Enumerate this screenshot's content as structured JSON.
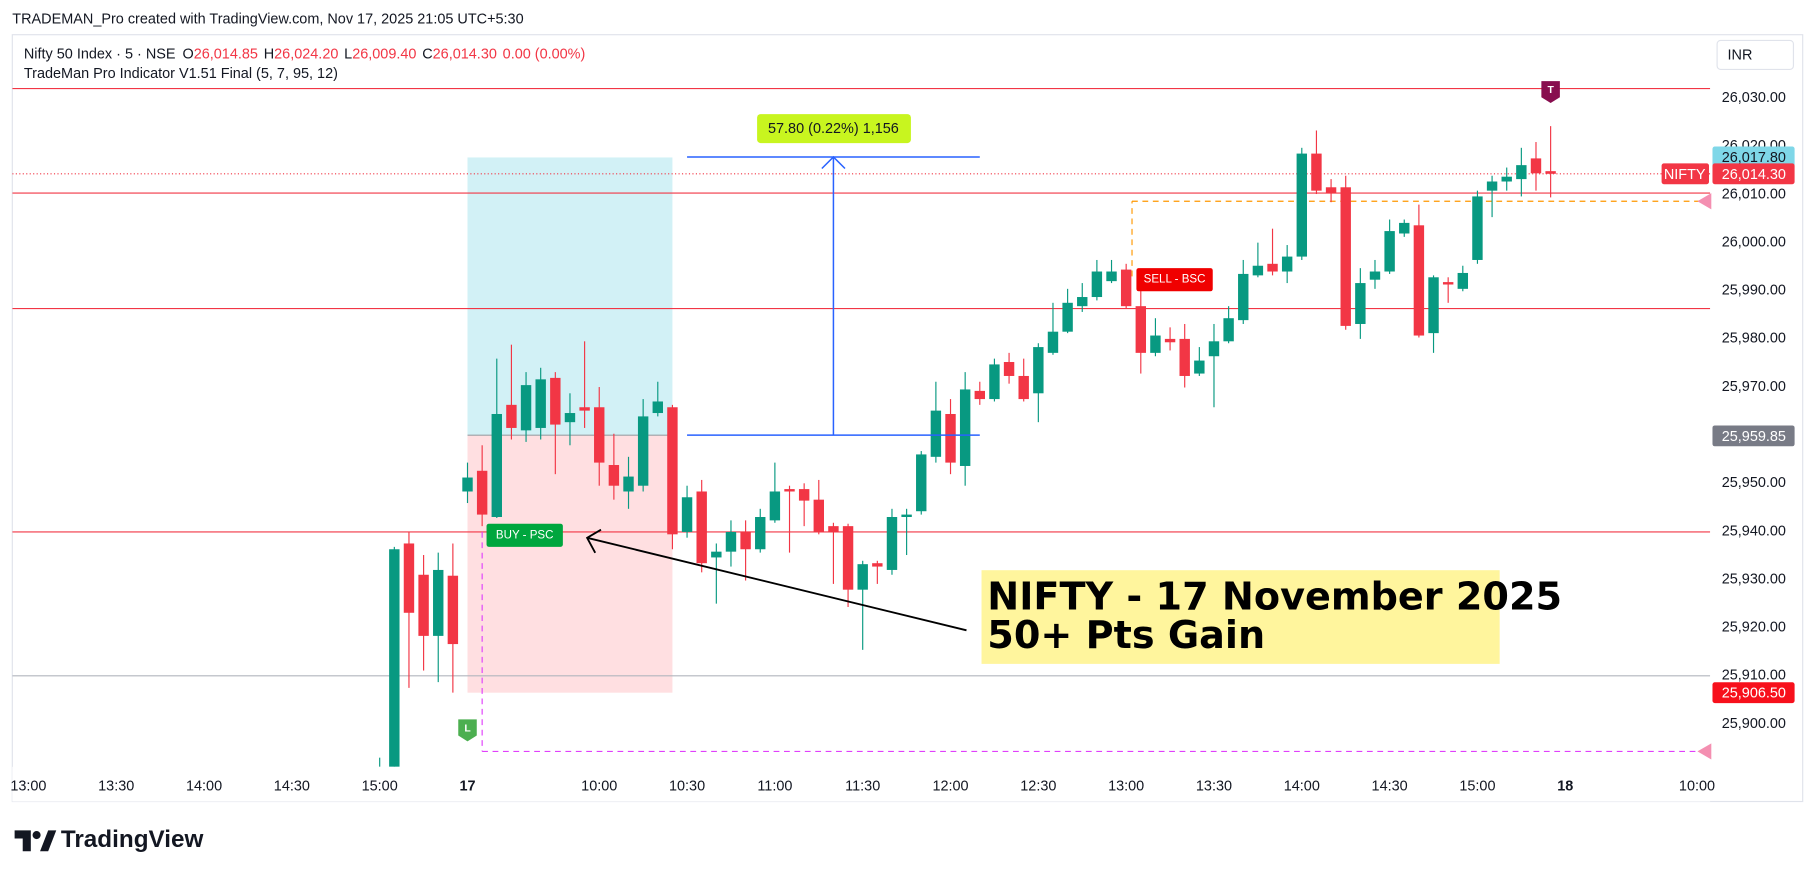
{
  "header": "TRADEMAN_Pro created with TradingView.com, Nov 17, 2025 21:05 UTC+5:30",
  "brand": "TradingView",
  "currency": "INR",
  "chart_data": {
    "type": "candlestick",
    "legend": {
      "symbol": "Nifty 50 Index · 5 · NSE",
      "ohlc": [
        {
          "key": "O",
          "value": "26,014.85"
        },
        {
          "key": "H",
          "value": "26,024.20"
        },
        {
          "key": "L",
          "value": "26,009.40"
        },
        {
          "key": "C",
          "value": "26,014.30"
        }
      ],
      "change": "0.00 (0.00%)",
      "indicator": "TradeMan Pro Indicator V1.51 Final (5, 7, 95, 12)",
      "value_color": "#f23645"
    },
    "up_color": "#089981",
    "down_color": "#f23645",
    "open": [
      25880,
      25889,
      25937.5,
      25931.0,
      25918.3,
      25930.8,
      25948.3,
      25952.6,
      25943.0,
      25966.3,
      25961.0,
      25961.5,
      25971.9,
      25962.7,
      25965.8,
      25965.8,
      25953.8,
      25948.3,
      25949.5,
      25964.6,
      25965.8,
      25939.9,
      25948.3,
      25934.6,
      25935.8,
      25939.9,
      25936.3,
      25942.3,
      25948.8,
      25948.8,
      25946.6,
      25941.1,
      25941.1,
      25927.9,
      25933.4,
      25932.0,
      25943.0,
      25944.2,
      25955.5,
      25964.4,
      25953.6,
      25969.2,
      25967.5,
      25975.2,
      25972.3,
      25968.7,
      25977.1,
      25981.5,
      25986.8,
      25988.7,
      25992.0,
      25994.4,
      25986.8,
      25977.1,
      25980.0,
      25980.0,
      25972.8,
      25976.4,
      25979.5,
      25983.9,
      25993.2,
      25995.6,
      25994.0,
      25997.1,
      26018.5,
      26011.5,
      26011.5,
      25983.1,
      25992.3,
      25994.0,
      26001.9,
      26003.6,
      25981.2,
      25991.8,
      25990.4,
      25996.4,
      26010.8,
      26012.7,
      26013.2,
      26017.5,
      26014.85
    ],
    "high": [
      25893,
      25936.8,
      25939.9,
      25935.1,
      25935.6,
      25937.5,
      25954.3,
      25957.9,
      25975.9,
      25978.8,
      25973.1,
      25974.0,
      25973.1,
      25968.7,
      25979.5,
      25970.0,
      25960.3,
      25955.5,
      25967.5,
      25971.1,
      25966.3,
      25949.5,
      25950.7,
      25937.5,
      25942.3,
      25942.3,
      25944.7,
      25954.3,
      25949.5,
      25950.0,
      25950.7,
      25941.8,
      25941.6,
      25933.9,
      25933.9,
      25944.7,
      25944.7,
      25956.7,
      25971.1,
      25967.5,
      25973.1,
      25971.1,
      25975.9,
      25977.1,
      25975.9,
      25979.1,
      25987.5,
      25990.4,
      25991.6,
      25996.4,
      25996.4,
      25995.6,
      25990.4,
      25984.3,
      25982.4,
      25983.1,
      25978.3,
      25983.1,
      25986.8,
      25996.4,
      26000.0,
      26002.9,
      25999.5,
      26019.7,
      26023.3,
      26013.2,
      26013.9,
      25994.7,
      25996.4,
      26004.8,
      26004.8,
      26007.9,
      25993.2,
      25992.8,
      25995.2,
      26010.8,
      26013.9,
      26015.6,
      26019.7,
      26020.9,
      26024.2
    ],
    "low": [
      25875,
      25885,
      25907.5,
      25911.1,
      25908.7,
      25906.5,
      25945.9,
      25941.1,
      25942.8,
      25959.1,
      25958.6,
      25959.1,
      25951.9,
      25957.9,
      25961.5,
      25949.5,
      25946.6,
      25944.7,
      25948.3,
      25963.9,
      25936.3,
      25938.7,
      25931.5,
      25925.0,
      25932.7,
      25929.8,
      25935.6,
      25941.8,
      25935.6,
      25941.1,
      25939.4,
      25929.1,
      25924.3,
      25915.4,
      25929.1,
      25931.0,
      25935.1,
      25943.5,
      25954.3,
      25951.9,
      25949.5,
      25966.3,
      25967.0,
      25970.7,
      25967.0,
      25962.7,
      25976.7,
      25981.2,
      25985.6,
      25988.0,
      25991.6,
      25986.3,
      25972.8,
      25976.4,
      25977.6,
      25969.9,
      25972.3,
      25965.8,
      25979.1,
      25983.1,
      25992.8,
      25993.2,
      25991.6,
      25996.4,
      26010.1,
      26008.4,
      25981.9,
      25980.0,
      25990.4,
      25993.5,
      26001.2,
      25980.3,
      25977.1,
      25987.5,
      25989.9,
      25995.6,
      26005.3,
      26010.8,
      26009.6,
      26010.8,
      26009.4
    ],
    "close": [
      25888,
      25936.3,
      25923.1,
      25918.3,
      25932.0,
      25916.6,
      25951.2,
      25943.5,
      25964.4,
      25961.5,
      25970.4,
      25971.6,
      25962.2,
      25964.6,
      25965.1,
      25954.3,
      25949.5,
      25951.4,
      25963.9,
      25967.0,
      25939.4,
      25947.1,
      25933.4,
      25935.8,
      25939.9,
      25936.3,
      25943.0,
      25948.3,
      25948.3,
      25946.4,
      25939.9,
      25939.9,
      25927.9,
      25933.2,
      25932.7,
      25943.0,
      25943.5,
      25956.0,
      25965.1,
      25954.3,
      25969.5,
      25967.5,
      25974.7,
      25972.3,
      25967.5,
      25978.3,
      25981.5,
      25987.5,
      25988.7,
      25994.0,
      25994.0,
      25986.8,
      25977.1,
      25980.7,
      25979.3,
      25972.3,
      25975.5,
      25979.5,
      25984.3,
      25993.5,
      25995.2,
      25994.0,
      25997.1,
      26018.5,
      26010.8,
      26010.3,
      25982.7,
      25991.6,
      25994.0,
      26002.4,
      26004.1,
      25980.7,
      25992.8,
      25991.3,
      25993.7,
      26009.6,
      26012.7,
      26013.7,
      26016.1,
      26014.4,
      26014.3
    ],
    "xlim": [
      -25.1,
      90.9
    ],
    "xticks": [
      {
        "value": -24,
        "label": "13:00"
      },
      {
        "value": -18,
        "label": "13:30"
      },
      {
        "value": -12,
        "label": "14:00"
      },
      {
        "value": -6,
        "label": "14:30"
      },
      {
        "value": 0,
        "label": "15:00"
      },
      {
        "value": 6,
        "label": "17"
      },
      {
        "value": 15,
        "label": "10:00"
      },
      {
        "value": 21,
        "label": "10:30"
      },
      {
        "value": 27,
        "label": "11:00"
      },
      {
        "value": 33,
        "label": "11:30"
      },
      {
        "value": 39,
        "label": "12:00"
      },
      {
        "value": 45,
        "label": "12:30"
      },
      {
        "value": 51,
        "label": "13:00"
      },
      {
        "value": 57,
        "label": "13:30"
      },
      {
        "value": 63,
        "label": "14:00"
      },
      {
        "value": 69,
        "label": "14:30"
      },
      {
        "value": 75,
        "label": "15:00"
      },
      {
        "value": 81,
        "label": "18"
      },
      {
        "value": 90,
        "label": "10:00"
      }
    ],
    "ylim": [
      25891.1,
      26043.2
    ],
    "yticks": [
      {
        "value": 25900,
        "label": "25,900.00"
      },
      {
        "value": 25910,
        "label": "25,910.00"
      },
      {
        "value": 25920,
        "label": "25,920.00"
      },
      {
        "value": 25930,
        "label": "25,930.00"
      },
      {
        "value": 25940,
        "label": "25,940.00"
      },
      {
        "value": 25950,
        "label": "25,950.00"
      },
      {
        "value": 25960,
        "label": "25,960.00"
      },
      {
        "value": 25970,
        "label": "25,970.00"
      },
      {
        "value": 25980,
        "label": "25,980.00"
      },
      {
        "value": 25990,
        "label": "25,990.00"
      },
      {
        "value": 26000,
        "label": "26,000.00"
      },
      {
        "value": 26010,
        "label": "26,010.00"
      },
      {
        "value": 26020,
        "label": "26,020.00"
      },
      {
        "value": 26030,
        "label": "26,030.00"
      }
    ],
    "grid": false,
    "levels": [
      {
        "value": 26032,
        "color": "#f23645"
      },
      {
        "value": 26010.3,
        "color": "#f23645"
      },
      {
        "value": 25986.3,
        "color": "#f23645"
      },
      {
        "value": 25939.9,
        "color": "#f23645"
      },
      {
        "value": 25910,
        "color": "#b2b5be"
      }
    ],
    "price_labels": [
      {
        "value": 26017.8,
        "label": "26,017.80",
        "color": "#7fd7e8",
        "text_color": "#131722"
      },
      {
        "value": 26014.3,
        "label": "26,014.30",
        "name": "NIFTY",
        "color": "#f23645",
        "text_color": "#ffffff"
      },
      {
        "value": 25959.85,
        "label": "25,959.85",
        "color": "#787b86",
        "text_color": "#ffffff"
      },
      {
        "value": 25906.5,
        "label": "25,906.50",
        "color": "#f7101c",
        "text_color": "#ffffff"
      }
    ],
    "position": {
      "start": 6,
      "end": 20,
      "entry": 25960,
      "target": 26017.7,
      "stop": 25906.5,
      "profit_color": "#d2f1f6",
      "loss_color": "#ffdfe1"
    },
    "measure": {
      "start": 21,
      "end": 41,
      "at": 31,
      "from": 25960,
      "to": 26017.8,
      "label": "57.80 (0.22%) 1,156",
      "color": "#2962ff",
      "label_color": "#c8f51f"
    },
    "signals": [
      {
        "label": "BUY - PSC",
        "x": 7.3,
        "value": 25939.2,
        "color": "#00a63e"
      },
      {
        "label": "SELL - BSC",
        "x": 51.7,
        "value": 25992.3,
        "color": "#f00000"
      }
    ],
    "markers": [
      {
        "label": "L",
        "x": 6,
        "value": 25898.8,
        "color": "#4caf50"
      },
      {
        "label": "T",
        "x": 80,
        "value": 26031.4,
        "color": "#880e4f"
      }
    ],
    "dashed": [
      {
        "value": 26008.6,
        "from": 25993,
        "start": 51.4,
        "color": "#ff9800"
      },
      {
        "value": 25894.3,
        "from": 25939.9,
        "start": 7,
        "color": "#e040fb"
      }
    ],
    "annotation": [
      "NIFTY - 17 November 2025",
      "50+ Pts Gain"
    ]
  }
}
